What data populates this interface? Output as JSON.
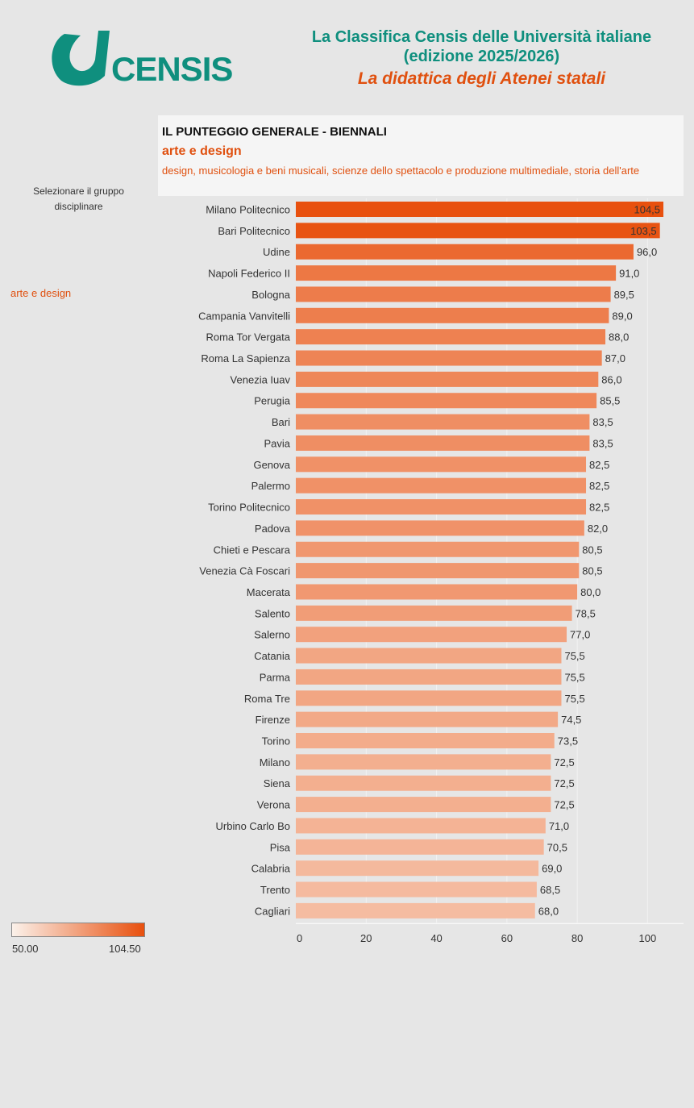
{
  "header": {
    "logo_text": "CENSIS",
    "title_line1": "La Classifica Censis delle Università italiane",
    "title_line2": "(edizione 2025/2026)",
    "subtitle": "La didattica degli Atenei statali"
  },
  "panel": {
    "title": "IL PUNTEGGIO GENERALE - BIENNALI",
    "group": "arte e design",
    "description": "design, musicologia e beni musicali, scienze dello spettacolo e produzione multimediale, storia dell'arte"
  },
  "filter": {
    "label": "Selezionare il gruppo disciplinare",
    "value": "arte e design"
  },
  "legend": {
    "min": "50.00",
    "max": "104.50"
  },
  "colors": {
    "accent": "#e0500f",
    "teal": "#0f8f7e",
    "low": "#fbf1ea",
    "high": "#e8500e"
  },
  "chart_data": {
    "type": "bar",
    "orientation": "horizontal",
    "title": "IL PUNTEGGIO GENERALE - BIENNALI",
    "xlim": [
      0,
      110
    ],
    "x_ticks": [
      "0",
      "20",
      "40",
      "60",
      "80",
      "100"
    ],
    "categories": [
      "Milano Politecnico",
      "Bari Politecnico",
      "Udine",
      "Napoli Federico II",
      "Bologna",
      "Campania Vanvitelli",
      "Roma Tor Vergata",
      "Roma La Sapienza",
      "Venezia Iuav",
      "Perugia",
      "Bari",
      "Pavia",
      "Genova",
      "Palermo",
      "Torino Politecnico",
      "Padova",
      "Chieti e Pescara",
      "Venezia Cà Foscari",
      "Macerata",
      "Salento",
      "Salerno",
      "Catania",
      "Parma",
      "Roma Tre",
      "Firenze",
      "Torino",
      "Milano",
      "Siena",
      "Verona",
      "Urbino Carlo Bo",
      "Pisa",
      "Calabria",
      "Trento",
      "Cagliari"
    ],
    "values": [
      104.5,
      103.5,
      96.0,
      91.0,
      89.5,
      89.0,
      88.0,
      87.0,
      86.0,
      85.5,
      83.5,
      83.5,
      82.5,
      82.5,
      82.5,
      82.0,
      80.5,
      80.5,
      80.0,
      78.5,
      77.0,
      75.5,
      75.5,
      75.5,
      74.5,
      73.5,
      72.5,
      72.5,
      72.5,
      71.0,
      70.5,
      69.0,
      68.5,
      68.0
    ],
    "labels": [
      "104,5",
      "103,5",
      "96,0",
      "91,0",
      "89,5",
      "89,0",
      "88,0",
      "87,0",
      "86,0",
      "85,5",
      "83,5",
      "83,5",
      "82,5",
      "82,5",
      "82,5",
      "82,0",
      "80,5",
      "80,5",
      "80,0",
      "78,5",
      "77,0",
      "75,5",
      "75,5",
      "75,5",
      "74,5",
      "73,5",
      "72,5",
      "72,5",
      "72,5",
      "71,0",
      "70,5",
      "69,0",
      "68,5",
      "68,0"
    ],
    "color_scale": [
      50.0,
      104.5
    ],
    "grid": true
  }
}
